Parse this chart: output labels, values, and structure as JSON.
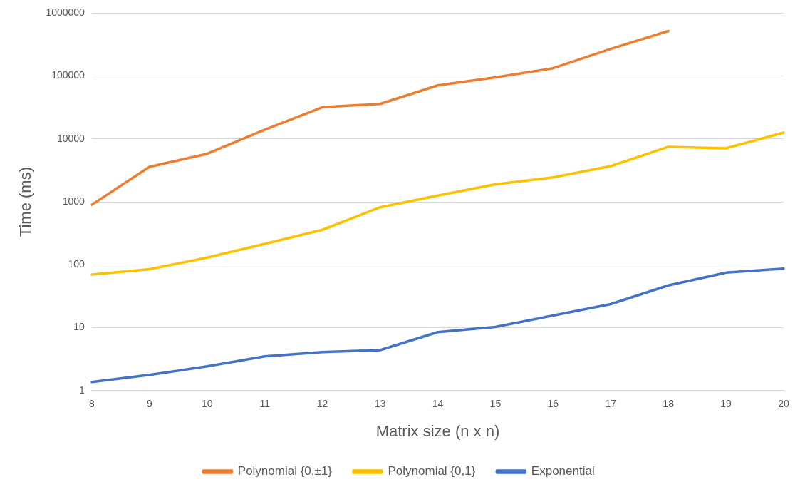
{
  "chart_data": {
    "type": "line",
    "xlabel": "Matrix size (n x n)",
    "ylabel": "Time (ms)",
    "categories": [
      "8",
      "9",
      "10",
      "11",
      "12",
      "13",
      "14",
      "15",
      "16",
      "17",
      "18",
      "19",
      "20"
    ],
    "series": [
      {
        "name": "Polynomial {0,±1}",
        "color": "#ed7d31",
        "values": [
          900,
          3600,
          5800,
          14000,
          32000,
          36000,
          71000,
          95000,
          133000,
          270000,
          520000,
          null,
          null
        ]
      },
      {
        "name": "Polynomial {0,1}",
        "color": "#ffc000",
        "values": [
          70,
          85,
          130,
          215,
          360,
          820,
          1260,
          1900,
          2450,
          3700,
          7500,
          7100,
          12600
        ]
      },
      {
        "name": "Exponential",
        "color": "#4472c4",
        "values": [
          1.37,
          1.78,
          2.43,
          3.5,
          4.1,
          4.4,
          8.5,
          10.3,
          15.6,
          23.7,
          47,
          75,
          87
        ]
      }
    ],
    "log": "y",
    "ylim": [
      1,
      1000000
    ],
    "yticks": [
      1,
      10,
      100,
      1000,
      10000,
      100000,
      1000000
    ],
    "grid": "y",
    "legend": "bottom",
    "marker": "none",
    "line_style": "solid"
  }
}
